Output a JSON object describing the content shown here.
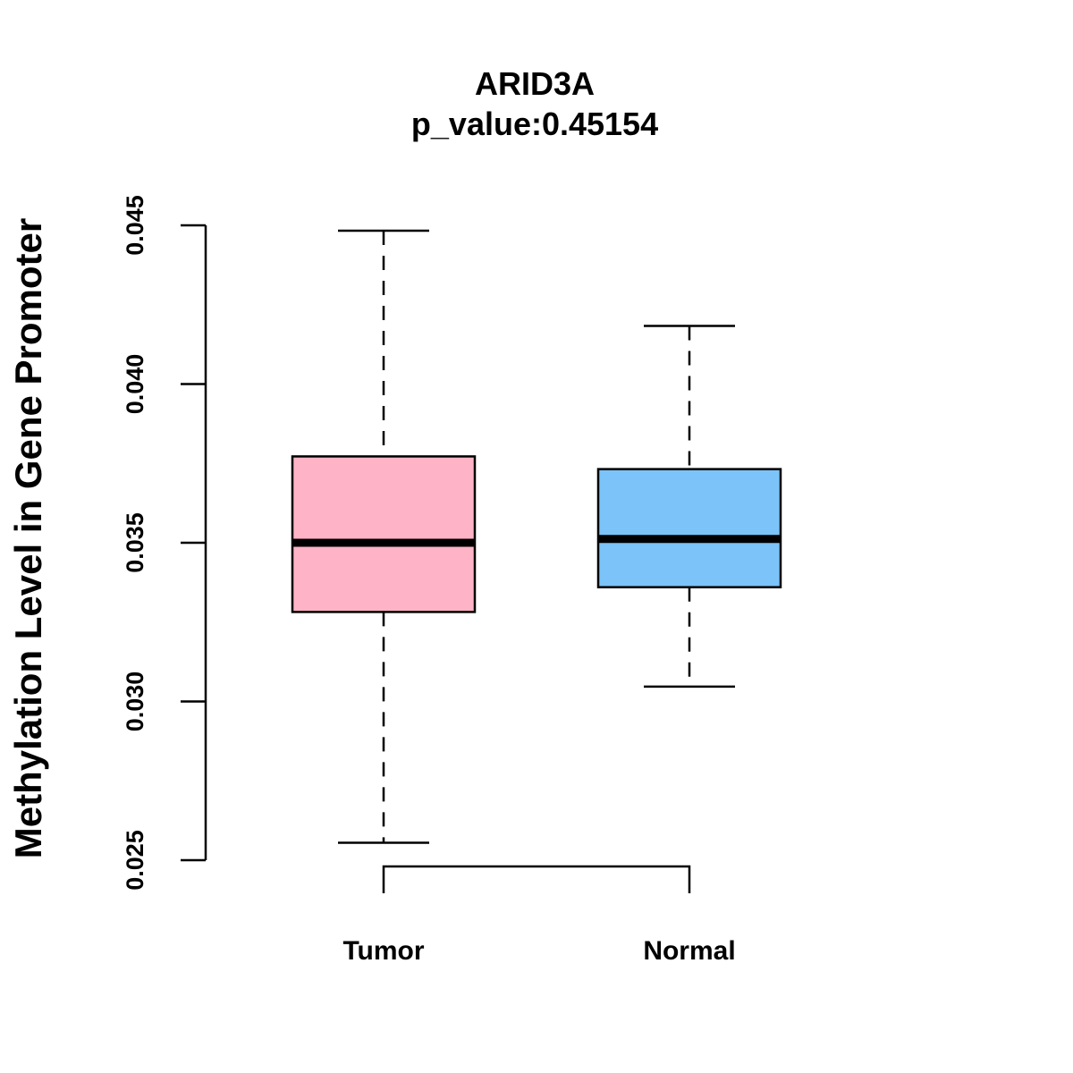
{
  "chart_data": {
    "type": "boxplot",
    "title": "ARID3A",
    "subtitle": "p_value:0.45154",
    "ylabel": "Methylation Level in Gene Promoter",
    "xlabel": "",
    "ylim": [
      0.025,
      0.045
    ],
    "yticks": [
      "0.025",
      "0.030",
      "0.035",
      "0.040",
      "0.045"
    ],
    "yticks_values": [
      0.025,
      0.03,
      0.035,
      0.04,
      0.045
    ],
    "categories": [
      "Tumor",
      "Normal"
    ],
    "boxes": [
      {
        "name": "Tumor",
        "min": 0.02555,
        "q1": 0.03282,
        "median": 0.035,
        "q3": 0.03772,
        "max": 0.04483,
        "color": "#FFB3C6"
      },
      {
        "name": "Normal",
        "min": 0.03047,
        "q1": 0.0336,
        "median": 0.03512,
        "q3": 0.03732,
        "max": 0.04183,
        "color": "#7BC3F8"
      }
    ],
    "significance_bracket": true,
    "grid": false,
    "legend": "none"
  }
}
